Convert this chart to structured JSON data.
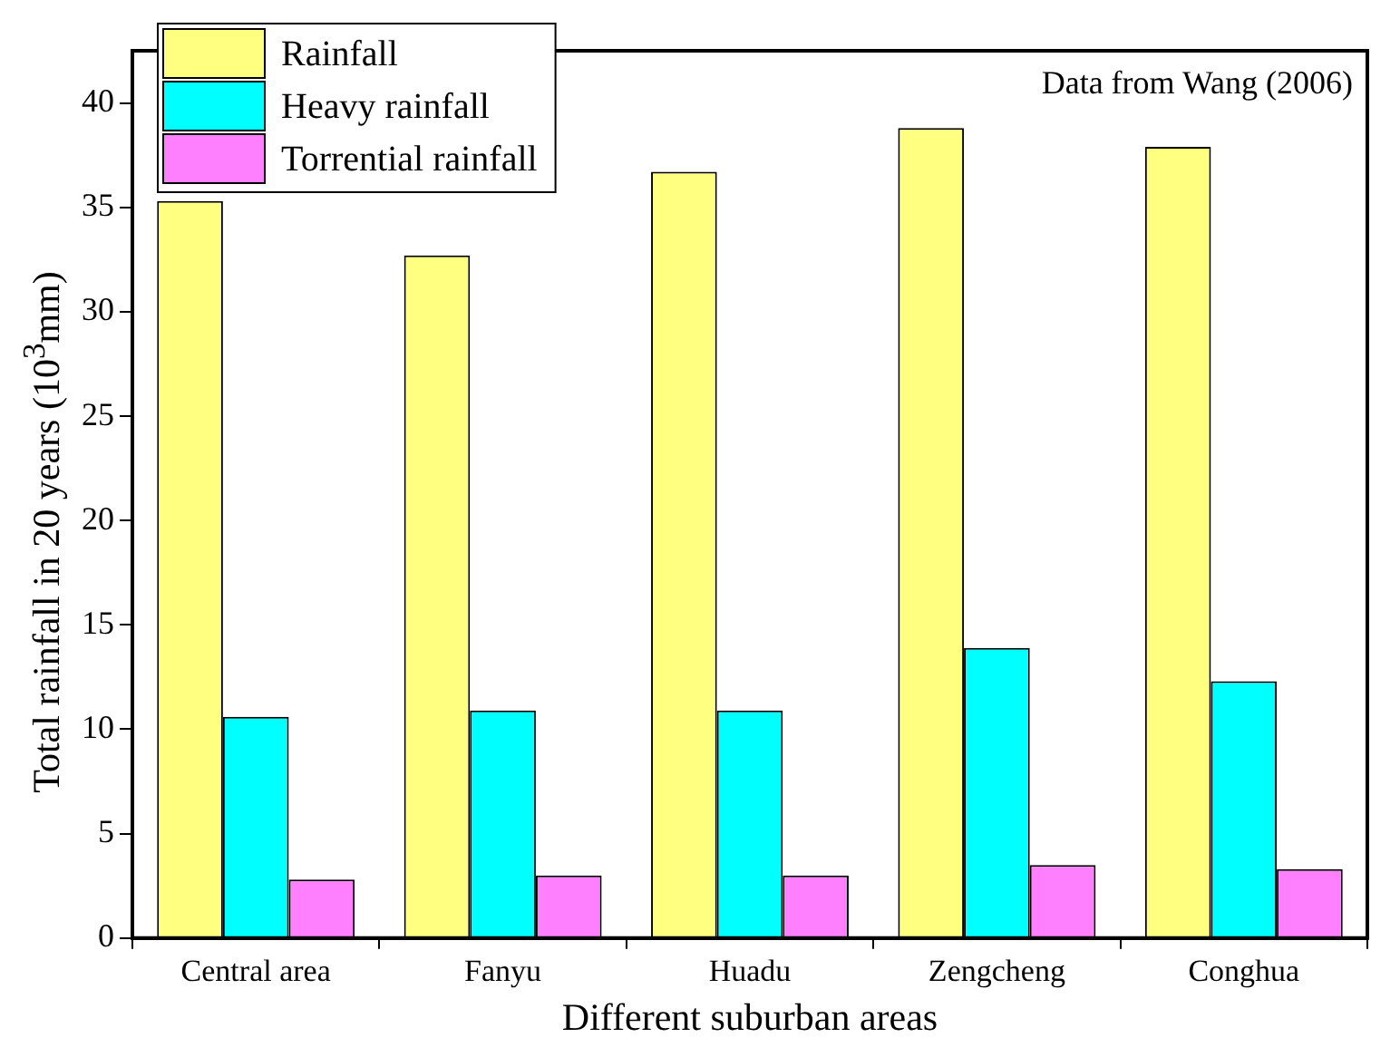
{
  "chart_data": {
    "type": "bar",
    "xlabel": "Different suburban areas",
    "ylabel": "Total rainfall in 20 years (10$^{3}$mm)",
    "categories": [
      "Central area",
      "Fanyu",
      "Huadu",
      "Zengcheng",
      "Conghua"
    ],
    "series": [
      {
        "name": "Rainfall",
        "color": "#ffff80",
        "values": [
          35.3,
          32.7,
          36.7,
          38.8,
          37.9
        ]
      },
      {
        "name": "Heavy rainfall",
        "color": "#00ffff",
        "values": [
          10.6,
          10.9,
          10.9,
          13.9,
          12.3
        ]
      },
      {
        "name": "Torrential rainfall",
        "color": "#ff80ff",
        "values": [
          2.8,
          3.0,
          3.0,
          3.5,
          3.3
        ]
      }
    ],
    "ylim": [
      0,
      42.5
    ],
    "yticks": [
      0,
      5,
      10,
      15,
      20,
      25,
      30,
      35,
      40
    ],
    "grid": false,
    "legend": "top left",
    "annotations": [
      "Data from Wang (2006)"
    ]
  }
}
